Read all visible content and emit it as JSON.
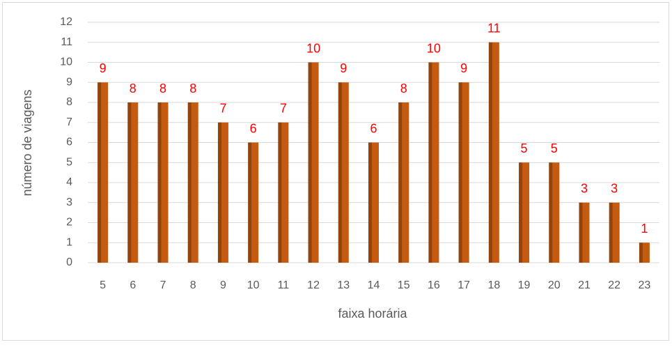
{
  "chart_data": {
    "type": "bar",
    "x_label": "faixa horária",
    "y_label": "número de viagens",
    "categories": [
      "5",
      "6",
      "7",
      "8",
      "9",
      "10",
      "11",
      "12",
      "13",
      "14",
      "15",
      "16",
      "17",
      "18",
      "19",
      "20",
      "21",
      "22",
      "23"
    ],
    "values": [
      9,
      8,
      8,
      8,
      7,
      6,
      7,
      10,
      9,
      6,
      8,
      10,
      9,
      11,
      5,
      5,
      3,
      3,
      1
    ],
    "color": "#c55a11",
    "label_color": "#ff0000",
    "ylim": [
      0,
      12
    ],
    "yticks": [
      0,
      1,
      2,
      3,
      4,
      5,
      6,
      7,
      8,
      9,
      10,
      11,
      12
    ],
    "grid": true
  }
}
